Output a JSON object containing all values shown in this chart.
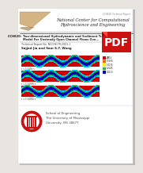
{
  "bg_color": "#e8e4df",
  "page_bg": "#ffffff",
  "title_line1": "National Center for Computational",
  "title_line2": "Hydroscience and Engineering",
  "main_title_line1": "CCHE2D: Two-dimensional Hydrodynamic and Sediment Transport",
  "main_title_line2": "Model For Unsteady Open Channel Flows Ove...",
  "report_label": "Technical Report No. NCCHE-TR-2001-1",
  "authors": "Sajjad Jia and Sam S.Y. Wang",
  "caption1": "t = 5.540e s",
  "caption2": "t = 5.54000 s",
  "caption3": "t = 5.54000 s",
  "footer_line1": "School of Engineering",
  "footer_line2": "The University of Mississippi",
  "footer_line3": "University, MS 38677",
  "header_text": "CCHE2D Technical Report",
  "legend_label": "VEL.S",
  "legend_values": [
    "0.714",
    "0.5808",
    "0.4276",
    "0.2245",
    "0.0213"
  ],
  "legend_colors": [
    "#dd0000",
    "#ff6600",
    "#ffff00",
    "#00cc44",
    "#0000cc"
  ],
  "pdf_icon_color": "#cc1111",
  "logo_color": "#cc1111",
  "logo_inner": "#ffffff",
  "wave_red": "#cc0000",
  "wave_cyan": "#00ccff",
  "wave_blue": "#0000bb",
  "wave_green": "#00aa44",
  "separator_color": "#555555",
  "header_color": "#888888",
  "text_dark": "#222222",
  "text_mid": "#444444",
  "text_light": "#666666"
}
